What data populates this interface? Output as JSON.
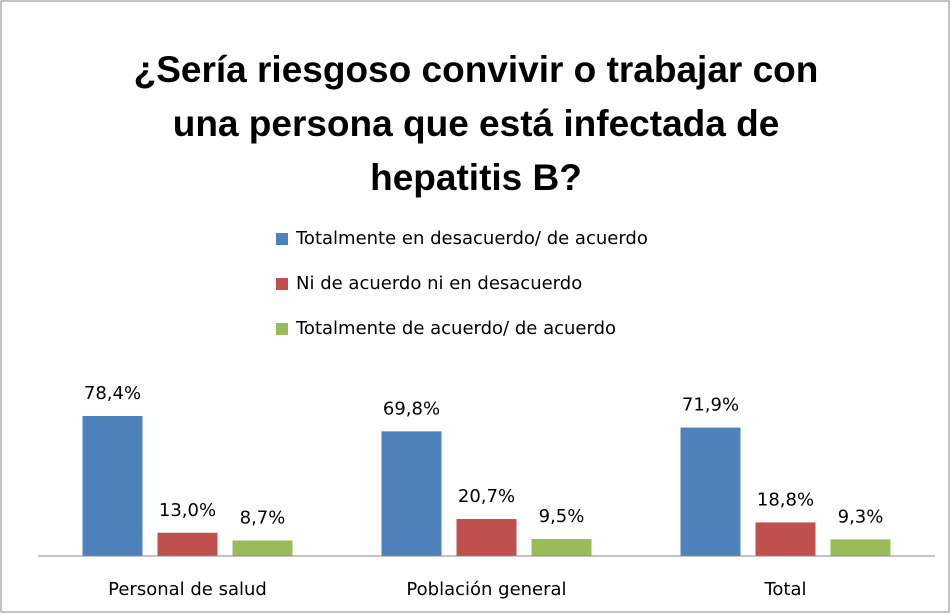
{
  "chart_data": {
    "type": "bar",
    "title": [
      "¿Sería riesgoso convivir o trabajar con",
      "una persona que está infectada de",
      "hepatitis B?"
    ],
    "categories": [
      "Personal de salud",
      "Población general",
      "Total"
    ],
    "series": [
      {
        "name": "Totalmente en desacuerdo/ de acuerdo",
        "color": "#4f81bd",
        "values": [
          78.4,
          69.8,
          71.9
        ],
        "value_labels": [
          "78,4%",
          "69,8%",
          "71,9%"
        ]
      },
      {
        "name": "Ni de acuerdo ni en desacuerdo",
        "color": "#c0504d",
        "values": [
          13.0,
          20.7,
          18.8
        ],
        "value_labels": [
          "13,0%",
          "20,7%",
          "18,8%"
        ]
      },
      {
        "name": "Totalmente de acuerdo/ de acuerdo",
        "color": "#9bbb59",
        "values": [
          8.7,
          9.5,
          9.3
        ],
        "value_labels": [
          "8,7%",
          "9,5%",
          "9,3%"
        ]
      }
    ],
    "legend": "top"
  }
}
